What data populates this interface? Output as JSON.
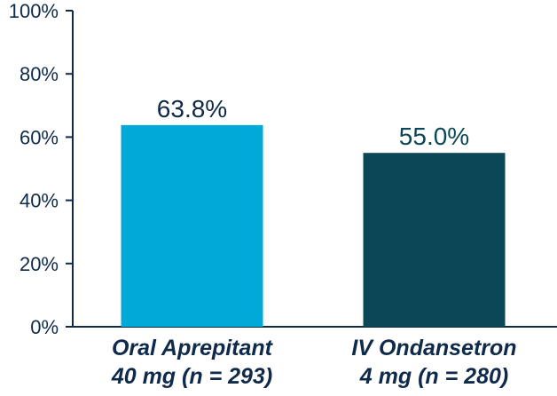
{
  "chart_data": {
    "type": "bar",
    "categories": [
      [
        "Oral Aprepitant",
        "40 mg (n = 293)"
      ],
      [
        "IV Ondansetron",
        "4 mg (n = 280)"
      ]
    ],
    "values": [
      63.8,
      55.0
    ],
    "data_labels": [
      "63.8%",
      "55.0%"
    ],
    "bar_colors": [
      "#00a9d8",
      "#0b4756"
    ],
    "label_colors": [
      "#0f2a4a",
      "#0b4756"
    ],
    "yticks": [
      "0%",
      "20%",
      "40%",
      "60%",
      "80%",
      "100%"
    ],
    "ylim": [
      0,
      100
    ],
    "grid": false,
    "title": "",
    "xlabel": "",
    "ylabel": ""
  }
}
